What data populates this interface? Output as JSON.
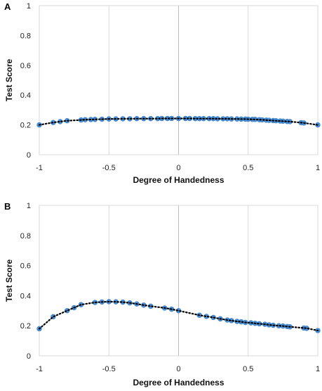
{
  "chart_data": [
    {
      "type": "scatter",
      "panel_label": "A",
      "xlabel": "Degree of Handedness",
      "ylabel": "Test  Score",
      "xlim": [
        -1,
        1
      ],
      "ylim": [
        0,
        1
      ],
      "x_ticks": [
        "-1",
        "-0.5",
        "0",
        "0.5",
        "1"
      ],
      "y_ticks": [
        "0",
        "0.2",
        "0.4",
        "0.6",
        "0.8",
        "1"
      ],
      "grid": "vertical",
      "trendline": "dotted",
      "point_color": "#4a90d9",
      "x": [
        -1.0,
        -0.9,
        -0.85,
        -0.8,
        -0.7,
        -0.67,
        -0.63,
        -0.6,
        -0.55,
        -0.5,
        -0.45,
        -0.4,
        -0.35,
        -0.3,
        -0.25,
        -0.2,
        -0.15,
        -0.12,
        -0.08,
        -0.05,
        0.0,
        0.05,
        0.08,
        0.12,
        0.15,
        0.18,
        0.22,
        0.25,
        0.28,
        0.32,
        0.35,
        0.38,
        0.42,
        0.45,
        0.48,
        0.5,
        0.53,
        0.55,
        0.58,
        0.6,
        0.63,
        0.65,
        0.68,
        0.7,
        0.73,
        0.75,
        0.78,
        0.8,
        0.88,
        0.9,
        1.0
      ],
      "y": [
        0.2,
        0.216,
        0.222,
        0.228,
        0.233,
        0.235,
        0.236,
        0.237,
        0.238,
        0.24,
        0.24,
        0.241,
        0.241,
        0.242,
        0.242,
        0.242,
        0.242,
        0.243,
        0.243,
        0.243,
        0.243,
        0.243,
        0.243,
        0.242,
        0.242,
        0.242,
        0.242,
        0.242,
        0.241,
        0.241,
        0.241,
        0.24,
        0.24,
        0.239,
        0.239,
        0.238,
        0.237,
        0.237,
        0.235,
        0.234,
        0.232,
        0.231,
        0.229,
        0.228,
        0.226,
        0.225,
        0.223,
        0.222,
        0.215,
        0.213,
        0.2
      ]
    },
    {
      "type": "scatter",
      "panel_label": "B",
      "xlabel": "Degree of Handedness",
      "ylabel": "Test Score",
      "xlim": [
        -1,
        1
      ],
      "ylim": [
        0,
        1
      ],
      "x_ticks": [
        "-1",
        "-0.5",
        "0",
        "0.5",
        "1"
      ],
      "y_ticks": [
        "0",
        "0.2",
        "0.4",
        "0.6",
        "0.8",
        "1"
      ],
      "grid": "vertical",
      "trendline": "dotted",
      "point_color": "#4a90d9",
      "x": [
        -1.0,
        -0.9,
        -0.8,
        -0.75,
        -0.7,
        -0.6,
        -0.55,
        -0.5,
        -0.45,
        -0.4,
        -0.35,
        -0.3,
        -0.25,
        -0.2,
        -0.1,
        -0.05,
        0.0,
        0.15,
        0.2,
        0.25,
        0.3,
        0.35,
        0.38,
        0.42,
        0.45,
        0.48,
        0.52,
        0.55,
        0.58,
        0.62,
        0.65,
        0.68,
        0.72,
        0.75,
        0.78,
        0.8,
        0.9,
        0.92,
        1.0
      ],
      "y": [
        0.18,
        0.26,
        0.3,
        0.32,
        0.34,
        0.355,
        0.358,
        0.36,
        0.359,
        0.357,
        0.352,
        0.345,
        0.337,
        0.33,
        0.318,
        0.31,
        0.3,
        0.27,
        0.262,
        0.255,
        0.246,
        0.238,
        0.234,
        0.229,
        0.226,
        0.222,
        0.219,
        0.216,
        0.213,
        0.21,
        0.206,
        0.203,
        0.2,
        0.198,
        0.195,
        0.193,
        0.185,
        0.183,
        0.168
      ]
    }
  ]
}
